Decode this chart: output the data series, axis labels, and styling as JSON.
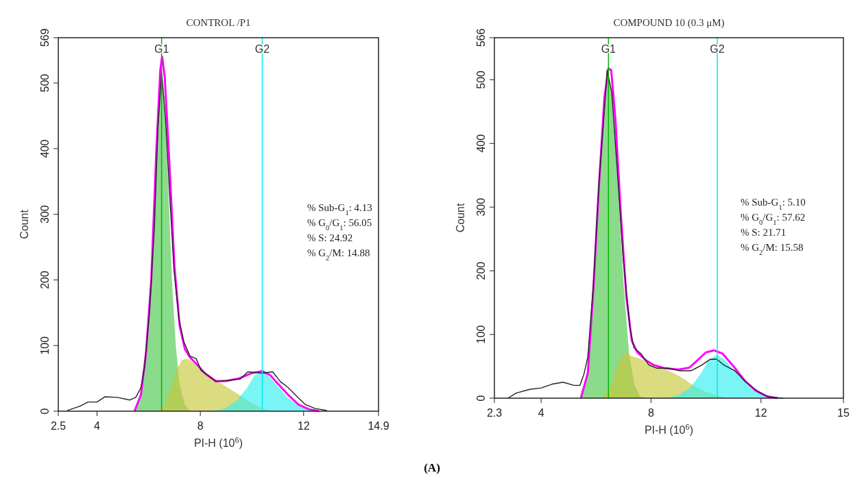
{
  "chart_data": [
    {
      "type": "line",
      "title": "CONTROL /P1",
      "xlabel": "PI-H (10$^{6}$)",
      "ylabel": "Count",
      "xlim": [
        2.5,
        14.9
      ],
      "ylim": [
        0,
        569
      ],
      "xticks": [
        2.5,
        4,
        8,
        12,
        14.9
      ],
      "yticks": [
        0,
        100,
        200,
        300,
        400,
        500,
        569
      ],
      "series": [
        {
          "type": "area",
          "color": "#4cc84c",
          "x": [
            5.45,
            5.7,
            5.9,
            6.1,
            6.3,
            6.45,
            6.5,
            6.6,
            6.75,
            6.9,
            7.05,
            7.2,
            7.4,
            7.6
          ],
          "values": [
            0,
            25,
            90,
            200,
            400,
            510,
            520,
            480,
            350,
            200,
            100,
            40,
            10,
            0
          ]
        },
        {
          "type": "area",
          "color": "#c8c83c",
          "x": [
            6.3,
            6.6,
            6.9,
            7.1,
            7.3,
            7.5,
            7.8,
            8.1,
            8.5,
            8.9,
            9.3,
            9.7,
            10.0,
            10.4,
            10.8
          ],
          "values": [
            0,
            8,
            40,
            65,
            78,
            80,
            72,
            62,
            50,
            40,
            30,
            20,
            12,
            4,
            0
          ]
        },
        {
          "type": "area",
          "color": "#33f0f0",
          "x": [
            8.5,
            9.0,
            9.4,
            9.8,
            10.1,
            10.4,
            10.6,
            11.0,
            11.4,
            11.8,
            12.2,
            12.6
          ],
          "values": [
            0,
            5,
            16,
            35,
            55,
            60,
            55,
            38,
            20,
            8,
            2,
            0
          ]
        },
        {
          "type": "line",
          "color": "#ff00ff",
          "x": [
            5.45,
            5.7,
            5.9,
            6.1,
            6.3,
            6.45,
            6.52,
            6.62,
            6.8,
            7.0,
            7.2,
            7.4,
            7.6,
            7.9,
            8.2,
            8.6,
            9.0,
            9.5,
            10.0,
            10.4,
            10.7,
            11.0,
            11.4,
            11.8,
            12.2,
            12.6
          ],
          "values": [
            0,
            25,
            90,
            200,
            400,
            520,
            540,
            510,
            380,
            220,
            130,
            95,
            82,
            70,
            57,
            46,
            46,
            50,
            58,
            61,
            55,
            42,
            25,
            10,
            3,
            0
          ]
        },
        {
          "type": "line",
          "color": "#222222",
          "x": [
            2.84,
            3.36,
            3.65,
            4.0,
            4.31,
            4.79,
            5.27,
            5.5,
            5.7,
            5.84,
            6.03,
            6.22,
            6.36,
            6.5,
            6.65,
            6.79,
            6.98,
            7.17,
            7.36,
            7.6,
            7.84,
            8.03,
            8.31,
            8.6,
            9.08,
            9.55,
            9.84,
            10.4,
            10.8,
            11.1,
            11.4,
            11.78,
            12.07,
            12.45,
            12.9
          ],
          "values": [
            1,
            8,
            14,
            14,
            22,
            21,
            17,
            21,
            36,
            67,
            150,
            280,
            433,
            516,
            446,
            346,
            215,
            141,
            106,
            84,
            80,
            62,
            54,
            45,
            47,
            49,
            60,
            58,
            60,
            45,
            36,
            21,
            10,
            4,
            1
          ]
        }
      ],
      "ref_lines": [
        {
          "axis": "x",
          "value": 6.5,
          "label": "G1",
          "color": "#00b400"
        },
        {
          "axis": "x",
          "value": 10.4,
          "label": "G2",
          "color": "#00e8f0"
        }
      ],
      "annotations": [
        "% Sub-G$_{1}$: 4.13",
        "% G$_{0}$/G$_{1}$: 56.05",
        "% S: 24.92",
        "% G$_{2}$/M: 14.88",
        "(A)"
      ]
    },
    {
      "type": "line",
      "title": "COMPOUND 10 (0.3 μM)",
      "xlabel": "PI-H (10$^{6}$)",
      "ylabel": "Count",
      "xlim": [
        2.3,
        15
      ],
      "ylim": [
        0,
        566
      ],
      "xticks": [
        2.3,
        4,
        8,
        12,
        15
      ],
      "yticks": [
        0,
        100,
        200,
        300,
        400,
        500,
        566
      ],
      "series": [
        {
          "type": "area",
          "color": "#4cc84c",
          "x": [
            5.4,
            5.7,
            5.9,
            6.1,
            6.3,
            6.45,
            6.6,
            6.8,
            7.0,
            7.2,
            7.4,
            7.6,
            7.8
          ],
          "values": [
            0,
            40,
            170,
            330,
            470,
            510,
            470,
            330,
            180,
            70,
            20,
            3,
            0
          ]
        },
        {
          "type": "area",
          "color": "#c8c83c",
          "x": [
            6.2,
            6.5,
            6.8,
            7.0,
            7.1,
            7.3,
            7.6,
            8.0,
            8.4,
            8.8,
            9.2,
            9.6,
            10.0,
            10.4,
            10.8
          ],
          "values": [
            0,
            15,
            55,
            70,
            72,
            66,
            62,
            55,
            47,
            40,
            30,
            18,
            10,
            4,
            0
          ]
        },
        {
          "type": "area",
          "color": "#33f0f0",
          "x": [
            8.6,
            9.0,
            9.4,
            9.8,
            10.1,
            10.4,
            10.7,
            11.0,
            11.4,
            11.8,
            12.2,
            12.6
          ],
          "values": [
            0,
            5,
            15,
            38,
            60,
            68,
            60,
            45,
            25,
            10,
            3,
            0
          ]
        },
        {
          "type": "line",
          "color": "#ff00ff",
          "x": [
            5.45,
            5.7,
            5.9,
            6.1,
            6.3,
            6.45,
            6.55,
            6.7,
            6.9,
            7.1,
            7.3,
            7.5,
            7.8,
            8.1,
            8.5,
            9.0,
            9.4,
            9.7,
            10.0,
            10.3,
            10.6,
            11.0,
            11.4,
            11.8,
            12.2,
            12.6
          ],
          "values": [
            0,
            40,
            170,
            330,
            470,
            518,
            515,
            440,
            290,
            160,
            90,
            72,
            60,
            52,
            47,
            45,
            48,
            60,
            72,
            75,
            70,
            50,
            28,
            12,
            3,
            0
          ]
        },
        {
          "type": "line",
          "color": "#222222",
          "x": [
            2.79,
            3.09,
            3.6,
            4.0,
            4.4,
            4.8,
            5.2,
            5.41,
            5.56,
            5.7,
            5.9,
            6.1,
            6.31,
            6.4,
            6.57,
            6.77,
            6.98,
            7.23,
            7.38,
            7.63,
            7.92,
            8.22,
            8.63,
            9.05,
            9.45,
            9.85,
            10.15,
            10.4,
            10.65,
            11.05,
            11.45,
            11.88,
            12.28,
            12.79
          ],
          "values": [
            0,
            8,
            14,
            16,
            22,
            25,
            20,
            20,
            38,
            65,
            178,
            336,
            457,
            515,
            480,
            358,
            223,
            110,
            79,
            70,
            52,
            47,
            47,
            43,
            43,
            52,
            61,
            61,
            52,
            43,
            25,
            11,
            2,
            0
          ]
        }
      ],
      "ref_lines": [
        {
          "axis": "x",
          "value": 6.45,
          "label": "G1",
          "color": "#00b400"
        },
        {
          "axis": "x",
          "value": 10.41,
          "label": "G2",
          "color": "#00e8f0"
        }
      ],
      "annotations": [
        "% Sub-G$_{1}$: 5.10",
        "% G$_{0}$/G$_{1}$: 57.62",
        "% S: 21.71",
        "% G$_{2}$/M: 15.58"
      ]
    }
  ]
}
